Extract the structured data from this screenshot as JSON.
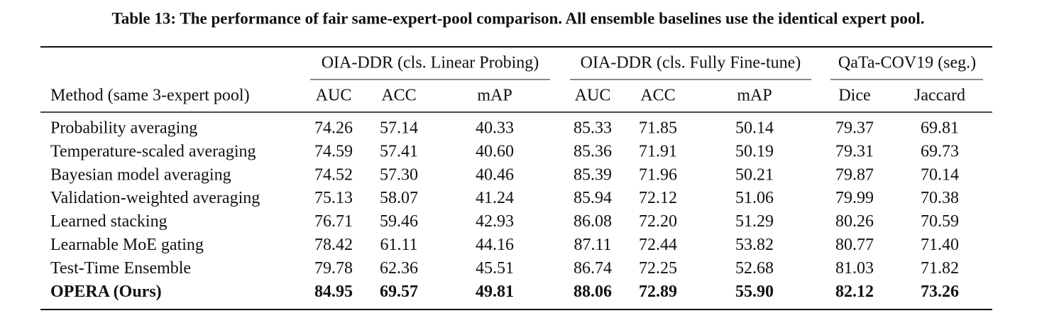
{
  "caption": "Table 13: The performance of fair same-expert-pool comparison. All ensemble baselines use the identical expert pool.",
  "table": {
    "groups": [
      "OIA-DDR (cls. Linear Probing)",
      "OIA-DDR (cls. Fully Fine-tune)",
      "QaTa-COV19 (seg.)"
    ],
    "header": [
      "Method (same 3-expert pool)",
      "AUC",
      "ACC",
      "mAP",
      "AUC",
      "ACC",
      "mAP",
      "Dice",
      "Jaccard"
    ],
    "rows": [
      [
        "Probability averaging",
        "74.26",
        "57.14",
        "40.33",
        "85.33",
        "71.85",
        "50.14",
        "79.37",
        "69.81"
      ],
      [
        "Temperature-scaled averaging",
        "74.59",
        "57.41",
        "40.60",
        "85.36",
        "71.91",
        "50.19",
        "79.31",
        "69.73"
      ],
      [
        "Bayesian model averaging",
        "74.52",
        "57.30",
        "40.46",
        "85.39",
        "71.96",
        "50.21",
        "79.87",
        "70.14"
      ],
      [
        "Validation-weighted averaging",
        "75.13",
        "58.07",
        "41.24",
        "85.94",
        "72.12",
        "51.06",
        "79.99",
        "70.38"
      ],
      [
        "Learned stacking",
        "76.71",
        "59.46",
        "42.93",
        "86.08",
        "72.20",
        "51.29",
        "80.26",
        "70.59"
      ],
      [
        "Learnable MoE gating",
        "78.42",
        "61.11",
        "44.16",
        "87.11",
        "72.44",
        "53.82",
        "80.77",
        "71.40"
      ],
      [
        "Test-Time Ensemble",
        "79.78",
        "62.36",
        "45.51",
        "86.74",
        "72.25",
        "52.68",
        "81.03",
        "71.82"
      ],
      [
        "OPERA (Ours)",
        "84.95",
        "69.57",
        "49.81",
        "88.06",
        "72.89",
        "55.90",
        "82.12",
        "73.26"
      ]
    ]
  }
}
